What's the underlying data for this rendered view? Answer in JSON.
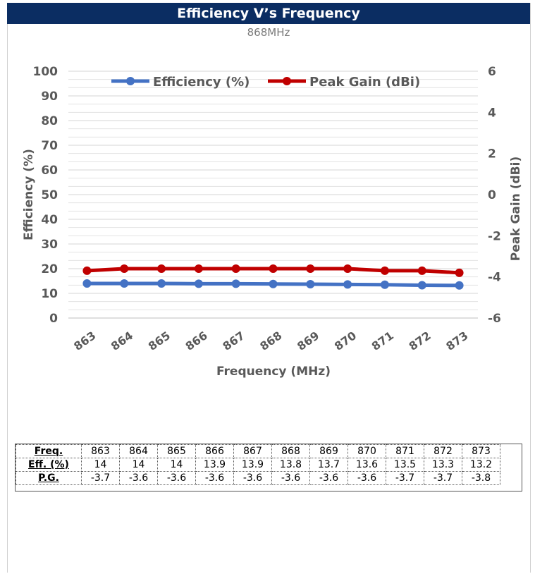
{
  "header": {
    "title": "Efficiency V’s Frequency",
    "subtitle": "868MHz"
  },
  "chart_data": {
    "type": "line",
    "title": "Efficiency V’s Frequency",
    "subtitle": "868MHz",
    "xlabel": "Frequency (MHz)",
    "ylabel": "Efficiency  (%)",
    "y2label": "Peak Gain (dBi)",
    "categories": [
      "863",
      "864",
      "865",
      "866",
      "867",
      "868",
      "869",
      "870",
      "871",
      "872",
      "873"
    ],
    "ylim": [
      0,
      100
    ],
    "y2lim": [
      -6,
      6
    ],
    "yticks": [
      "0",
      "10",
      "20",
      "30",
      "40",
      "50",
      "60",
      "70",
      "80",
      "90",
      "100"
    ],
    "y2ticks": [
      "-6",
      "-4",
      "-2",
      "0",
      "2",
      "4",
      "6"
    ],
    "grid": true,
    "legend": "top",
    "series": [
      {
        "name": "Efficiency (%)",
        "axis": "left",
        "color": "#4472c4",
        "values": [
          14,
          14,
          14,
          13.9,
          13.9,
          13.8,
          13.7,
          13.6,
          13.5,
          13.3,
          13.2
        ]
      },
      {
        "name": "Peak Gain (dBi)",
        "axis": "right",
        "color": "#c00000",
        "values": [
          -3.7,
          -3.6,
          -3.6,
          -3.6,
          -3.6,
          -3.6,
          -3.6,
          -3.6,
          -3.7,
          -3.7,
          -3.8
        ]
      }
    ]
  },
  "table": {
    "row_labels": [
      "Freq.",
      "Eff. (%)",
      "P.G."
    ],
    "freq": [
      "863",
      "864",
      "865",
      "866",
      "867",
      "868",
      "869",
      "870",
      "871",
      "872",
      "873"
    ],
    "eff": [
      "14",
      "14",
      "14",
      "13.9",
      "13.9",
      "13.8",
      "13.7",
      "13.6",
      "13.5",
      "13.3",
      "13.2"
    ],
    "pg": [
      "-3.7",
      "-3.6",
      "-3.6",
      "-3.6",
      "-3.6",
      "-3.6",
      "-3.6",
      "-3.6",
      "-3.7",
      "-3.7",
      "-3.8"
    ]
  }
}
